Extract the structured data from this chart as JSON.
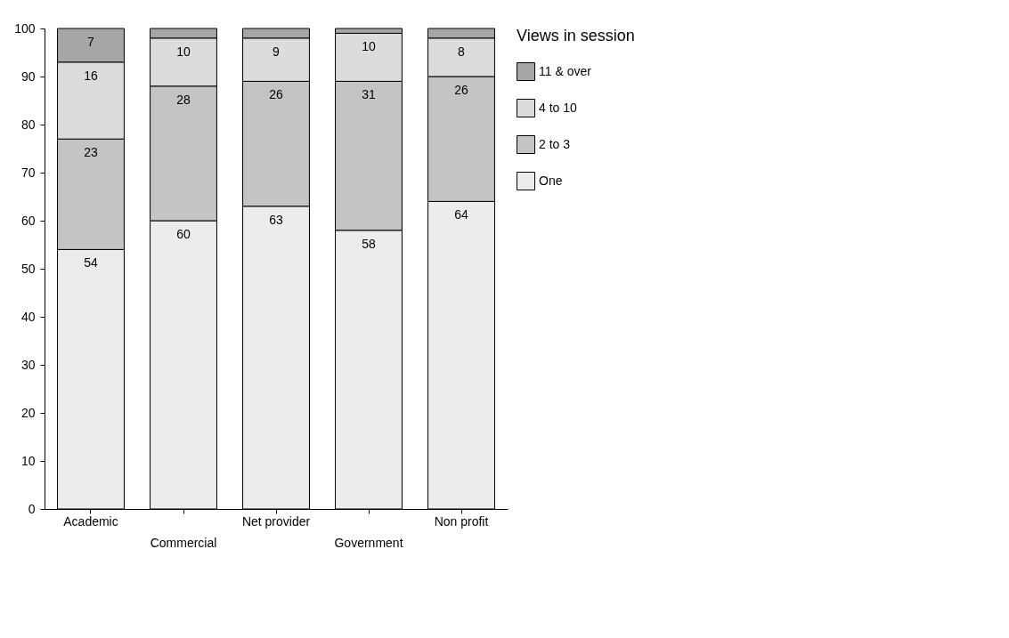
{
  "chart_data": {
    "type": "bar",
    "stacked": true,
    "legend_title": "Views in session",
    "legend": "right",
    "grid": false,
    "categories": [
      "Academic",
      "Commercial",
      "Net provider",
      "Government",
      "Non profit"
    ],
    "series": [
      {
        "name": "One",
        "color": "#ececec",
        "values": [
          54,
          60,
          63,
          58,
          64
        ],
        "value_labels": [
          "54",
          "60",
          "63",
          "58",
          "64"
        ]
      },
      {
        "name": "2 to 3",
        "color": "#c4c4c4",
        "values": [
          23,
          28,
          26,
          31,
          26
        ],
        "value_labels": [
          "23",
          "28",
          "26",
          "31",
          "26"
        ]
      },
      {
        "name": "4 to 10",
        "color": "#dcdcdc",
        "values": [
          16,
          10,
          9,
          10,
          8
        ],
        "value_labels": [
          "16",
          "10",
          "9",
          "10",
          "8"
        ]
      },
      {
        "name": "11 & over",
        "color": "#a6a6a6",
        "values": [
          7,
          2,
          2,
          1,
          2
        ],
        "value_labels": [
          "7",
          null,
          null,
          null,
          null
        ]
      }
    ],
    "ylim": [
      0,
      100
    ],
    "yticks": [
      0,
      10,
      20,
      30,
      40,
      50,
      60,
      70,
      80,
      90,
      100
    ]
  }
}
